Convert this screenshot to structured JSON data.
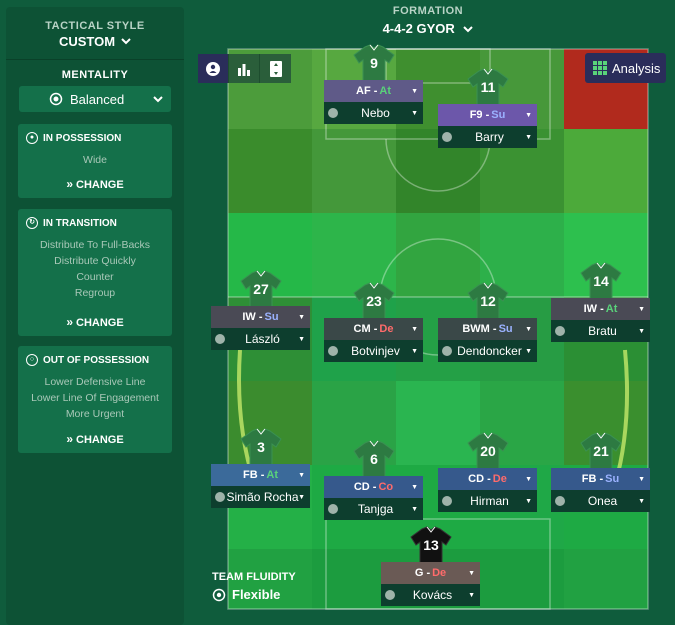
{
  "left_panel": {
    "tactical_style_label": "TACTICAL STYLE",
    "tactical_style_value": "CUSTOM",
    "mentality_label": "MENTALITY",
    "mentality_value": "Balanced",
    "in_possession": {
      "title": "IN POSSESSION",
      "lines": [
        "Wide"
      ],
      "change": "CHANGE"
    },
    "in_transition": {
      "title": "IN TRANSITION",
      "lines": [
        "Distribute To Full-Backs",
        "Distribute Quickly",
        "Counter",
        "Regroup"
      ],
      "change": "CHANGE"
    },
    "out_of_possession": {
      "title": "OUT OF POSSESSION",
      "lines": [
        "Lower Defensive Line",
        "Lower Line Of Engagement",
        "More Urgent"
      ],
      "change": "CHANGE"
    }
  },
  "header": {
    "formation_label": "FORMATION",
    "formation_value": "4-4-2 GYOR"
  },
  "toolbar": {
    "analysis_label": "Analysis",
    "icons": [
      "player-icon",
      "bar-chart-icon",
      "vertical-arrows-icon"
    ]
  },
  "colors": {
    "duty_attack": "#59d27a",
    "duty_support": "#8aa6ff",
    "duty_defend": "#ff6b6b",
    "duty_cover": "#ff6b6b",
    "role_bg_attack": "#5d5a86",
    "role_bg_support": "#6d5aa8",
    "role_bg_cb": "#3e5d8e",
    "role_bg_mid": "#3b4a4a",
    "role_bg_gk": "#6a5a55"
  },
  "players": [
    {
      "number": "9",
      "role": "AF",
      "duty": "At",
      "name": "Nebo",
      "role_bg": "#5f5a88",
      "duty_color": "#59d27a",
      "shirt": "green"
    },
    {
      "number": "11",
      "role": "F9",
      "duty": "Su",
      "name": "Barry",
      "role_bg": "#6c57aa",
      "duty_color": "#9bb2ff",
      "shirt": "green"
    },
    {
      "number": "27",
      "role": "IW",
      "duty": "Su",
      "name": "László",
      "role_bg": "#4a4a55",
      "duty_color": "#9bb2ff",
      "shirt": "green"
    },
    {
      "number": "23",
      "role": "CM",
      "duty": "De",
      "name": "Botvinjev",
      "role_bg": "#3a4848",
      "duty_color": "#ff6b6b",
      "shirt": "green"
    },
    {
      "number": "12",
      "role": "BWM",
      "duty": "Su",
      "name": "Dendoncker",
      "role_bg": "#3a4848",
      "duty_color": "#9bb2ff",
      "shirt": "green"
    },
    {
      "number": "14",
      "role": "IW",
      "duty": "At",
      "name": "Bratu",
      "role_bg": "#4a4a55",
      "duty_color": "#59d27a",
      "shirt": "green"
    },
    {
      "number": "3",
      "role": "FB",
      "duty": "At",
      "name": "Simão Rocha",
      "role_bg": "#3b6a9a",
      "duty_color": "#59d27a",
      "shirt": "green"
    },
    {
      "number": "6",
      "role": "CD",
      "duty": "Co",
      "name": "Tanjga",
      "role_bg": "#36598c",
      "duty_color": "#ff6b6b",
      "shirt": "green"
    },
    {
      "number": "20",
      "role": "CD",
      "duty": "De",
      "name": "Hirman",
      "role_bg": "#36598c",
      "duty_color": "#ff6b6b",
      "shirt": "green"
    },
    {
      "number": "21",
      "role": "FB",
      "duty": "Su",
      "name": "Onea",
      "role_bg": "#36598c",
      "duty_color": "#9bb2ff",
      "shirt": "green"
    },
    {
      "number": "13",
      "role": "G",
      "duty": "De",
      "name": "Kovács",
      "role_bg": "#6a5a55",
      "duty_color": "#ff6b6b",
      "shirt": "black"
    }
  ],
  "team_fluidity": {
    "label": "TEAM FLUIDITY",
    "value": "Flexible"
  }
}
